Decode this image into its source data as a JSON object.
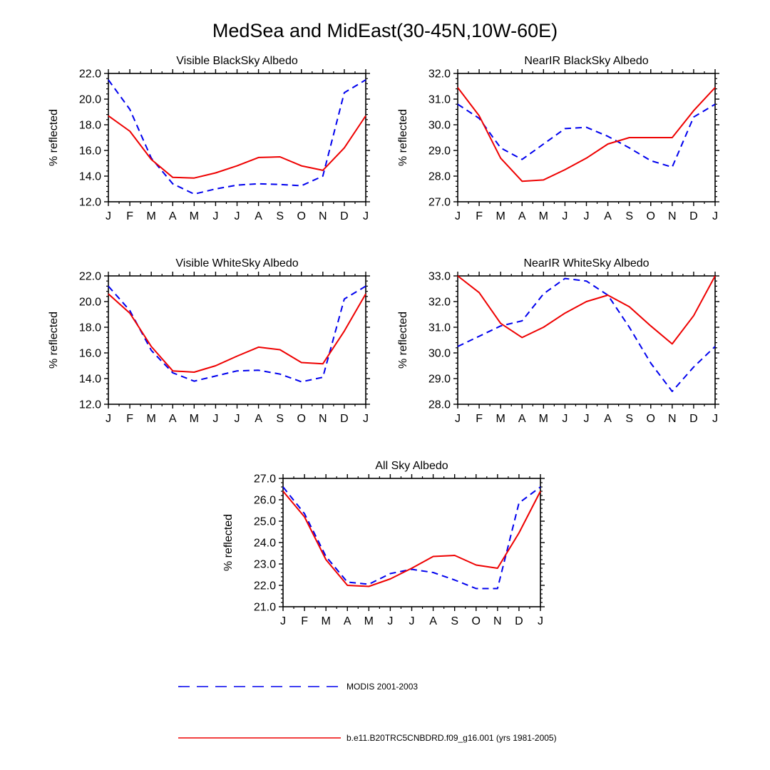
{
  "figure": {
    "title": "MedSea and MidEast(30-45N,10W-60E)"
  },
  "colors": {
    "modis": "#0000ee",
    "model": "#ee0000",
    "axis": "#000000"
  },
  "legend": {
    "modis_label": "MODIS 2001-2003",
    "model_label": "b.e11.B20TRC5CNBDRD.f09_g16.001 (yrs 1981-2005)"
  },
  "chart_data": [
    {
      "type": "line",
      "title": "Visible BlackSky Albedo",
      "xlabel": "",
      "ylabel": "% reflected",
      "categories": [
        "J",
        "F",
        "M",
        "A",
        "M",
        "J",
        "J",
        "A",
        "S",
        "O",
        "N",
        "D",
        "J"
      ],
      "ylim": [
        12.0,
        22.0
      ],
      "yticks": [
        "12.0",
        "14.0",
        "16.0",
        "18.0",
        "20.0",
        "22.0"
      ],
      "series": [
        {
          "name": "MODIS 2001-2003",
          "style": "dashed",
          "values": [
            21.5,
            19.2,
            15.4,
            13.4,
            12.6,
            13.0,
            13.3,
            13.4,
            13.35,
            13.25,
            14.0,
            20.5,
            21.5
          ]
        },
        {
          "name": "b.e11.B20TRC5CNBDRD.f09_g16.001 (yrs 1981-2005)",
          "style": "solid",
          "values": [
            18.7,
            17.5,
            15.3,
            13.9,
            13.85,
            14.25,
            14.8,
            15.45,
            15.5,
            14.8,
            14.45,
            16.2,
            18.7
          ]
        }
      ]
    },
    {
      "type": "line",
      "title": "NearIR BlackSky Albedo",
      "xlabel": "",
      "ylabel": "% reflected",
      "categories": [
        "J",
        "F",
        "M",
        "A",
        "M",
        "J",
        "J",
        "A",
        "S",
        "O",
        "N",
        "D",
        "J"
      ],
      "ylim": [
        27.0,
        32.0
      ],
      "yticks": [
        "27.0",
        "28.0",
        "29.0",
        "30.0",
        "31.0",
        "32.0"
      ],
      "series": [
        {
          "name": "MODIS 2001-2003",
          "style": "dashed",
          "values": [
            30.8,
            30.25,
            29.1,
            28.65,
            29.25,
            29.85,
            29.9,
            29.55,
            29.1,
            28.6,
            28.35,
            30.3,
            30.8
          ]
        },
        {
          "name": "b.e11.B20TRC5CNBDRD.f09_g16.001 (yrs 1981-2005)",
          "style": "solid",
          "values": [
            31.45,
            30.35,
            28.7,
            27.8,
            27.85,
            28.25,
            28.7,
            29.25,
            29.5,
            29.5,
            29.5,
            30.55,
            31.45
          ]
        }
      ]
    },
    {
      "type": "line",
      "title": "Visible WhiteSky Albedo",
      "xlabel": "",
      "ylabel": "% reflected",
      "categories": [
        "J",
        "F",
        "M",
        "A",
        "M",
        "J",
        "J",
        "A",
        "S",
        "O",
        "N",
        "D",
        "J"
      ],
      "ylim": [
        12.0,
        22.0
      ],
      "yticks": [
        "12.0",
        "14.0",
        "16.0",
        "18.0",
        "20.0",
        "22.0"
      ],
      "series": [
        {
          "name": "MODIS 2001-2003",
          "style": "dashed",
          "values": [
            21.2,
            19.3,
            16.2,
            14.45,
            13.8,
            14.2,
            14.6,
            14.65,
            14.35,
            13.75,
            14.1,
            20.2,
            21.2
          ]
        },
        {
          "name": "b.e11.B20TRC5CNBDRD.f09_g16.001 (yrs 1981-2005)",
          "style": "solid",
          "values": [
            20.6,
            19.1,
            16.5,
            14.6,
            14.5,
            15.0,
            15.75,
            16.45,
            16.25,
            15.25,
            15.15,
            17.7,
            20.6
          ]
        }
      ]
    },
    {
      "type": "line",
      "title": "NearIR WhiteSky Albedo",
      "xlabel": "",
      "ylabel": "% reflected",
      "categories": [
        "J",
        "F",
        "M",
        "A",
        "M",
        "J",
        "J",
        "A",
        "S",
        "O",
        "N",
        "D",
        "J"
      ],
      "ylim": [
        28.0,
        33.0
      ],
      "yticks": [
        "28.0",
        "29.0",
        "30.0",
        "31.0",
        "32.0",
        "33.0"
      ],
      "series": [
        {
          "name": "MODIS 2001-2003",
          "style": "dashed",
          "values": [
            30.25,
            30.65,
            31.05,
            31.25,
            32.3,
            32.9,
            32.8,
            32.25,
            31.0,
            29.6,
            28.5,
            29.45,
            30.25
          ]
        },
        {
          "name": "b.e11.B20TRC5CNBDRD.f09_g16.001 (yrs 1981-2005)",
          "style": "solid",
          "values": [
            33.0,
            32.35,
            31.15,
            30.6,
            31.0,
            31.55,
            32.0,
            32.25,
            31.8,
            31.05,
            30.35,
            31.45,
            33.0
          ]
        }
      ]
    },
    {
      "type": "line",
      "title": "All Sky Albedo",
      "xlabel": "",
      "ylabel": "% reflected",
      "categories": [
        "J",
        "F",
        "M",
        "A",
        "M",
        "J",
        "J",
        "A",
        "S",
        "O",
        "N",
        "D",
        "J"
      ],
      "ylim": [
        21.0,
        27.0
      ],
      "yticks": [
        "21.0",
        "22.0",
        "23.0",
        "24.0",
        "25.0",
        "26.0",
        "27.0"
      ],
      "series": [
        {
          "name": "MODIS 2001-2003",
          "style": "dashed",
          "values": [
            26.6,
            25.35,
            23.35,
            22.15,
            22.05,
            22.55,
            22.75,
            22.6,
            22.25,
            21.85,
            21.85,
            25.85,
            26.6
          ]
        },
        {
          "name": "b.e11.B20TRC5CNBDRD.f09_g16.001 (yrs 1981-2005)",
          "style": "solid",
          "values": [
            26.4,
            25.2,
            23.2,
            22.0,
            21.95,
            22.3,
            22.8,
            23.35,
            23.4,
            22.95,
            22.8,
            24.45,
            26.4
          ]
        }
      ]
    }
  ]
}
